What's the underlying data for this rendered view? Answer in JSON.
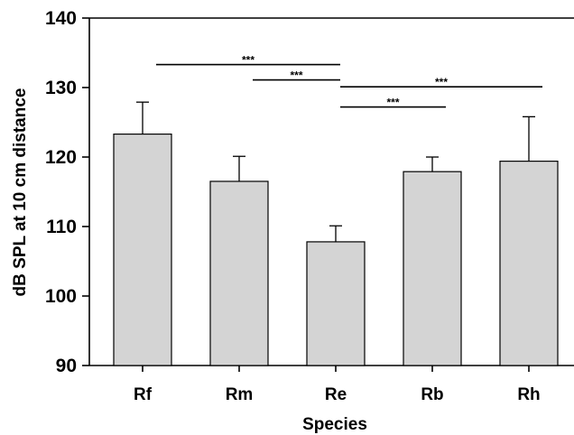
{
  "chart_data": {
    "type": "bar",
    "xlabel": "Species",
    "ylabel": "dB SPL at 10 cm distance",
    "ylim": [
      90,
      140
    ],
    "yticks": [
      90,
      100,
      110,
      120,
      130,
      140
    ],
    "categories": [
      "Rf",
      "Rm",
      "Re",
      "Rb",
      "Rh"
    ],
    "values": [
      123.3,
      116.5,
      107.8,
      117.9,
      119.4
    ],
    "errors": [
      4.6,
      3.6,
      2.3,
      2.1,
      6.4
    ],
    "bar_color": "#d4d4d4",
    "grid": false,
    "significance": [
      {
        "from": "Rf",
        "to": "Re",
        "y": 133.3,
        "label": "***"
      },
      {
        "from": "Rm",
        "to": "Re",
        "y": 131.1,
        "label": "***"
      },
      {
        "from": "Re",
        "to": "Rh",
        "y": 130.1,
        "label": "***"
      },
      {
        "from": "Re",
        "to": "Rb",
        "y": 127.2,
        "label": "***"
      }
    ]
  }
}
